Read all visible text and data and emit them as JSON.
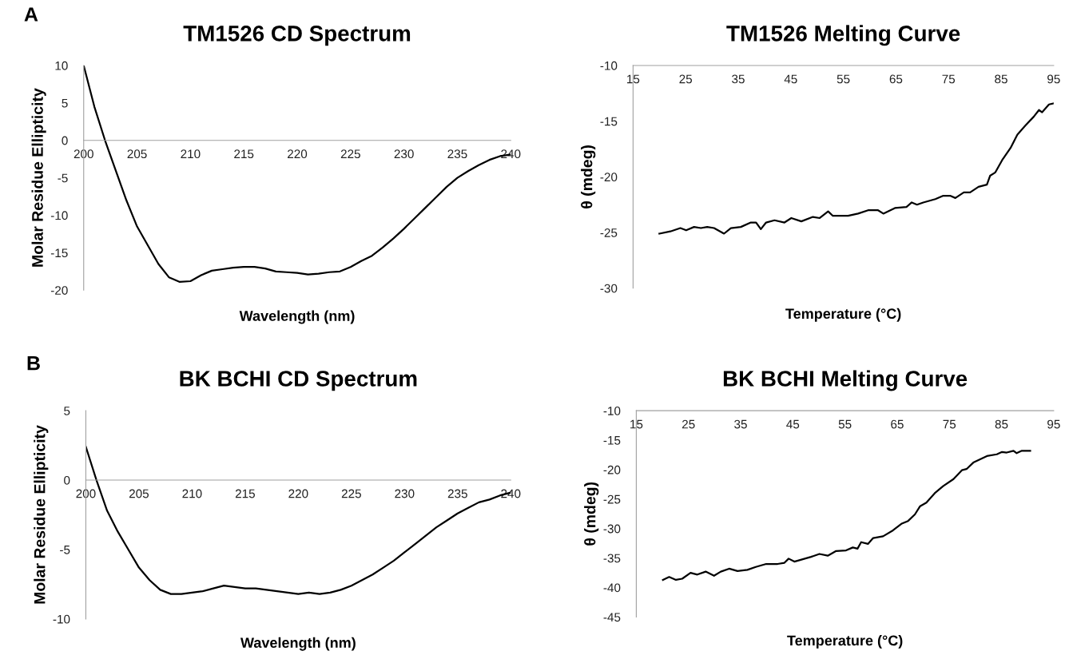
{
  "chart_data": [
    {
      "type": "line",
      "title": "TM1526 CD Spectrum",
      "xlabel": "Wavelength (nm)",
      "ylabel": "Molar Residue Ellipticity",
      "annotations": [
        "A"
      ],
      "xlim": [
        200,
        240
      ],
      "xticks": [
        200,
        205,
        210,
        215,
        220,
        225,
        230,
        235,
        240
      ],
      "ylim": [
        -20,
        10
      ],
      "yticks": [
        -20,
        -15,
        -10,
        -5,
        0,
        5,
        10
      ],
      "grid": false,
      "legend": false,
      "series": [
        {
          "color": "#000000",
          "x": [
            200,
            201,
            202,
            203,
            204,
            205,
            206,
            207,
            208,
            209,
            210,
            211,
            212,
            213,
            214,
            215,
            216,
            217,
            218,
            219,
            220,
            221,
            222,
            223,
            224,
            225,
            226,
            227,
            228,
            229,
            230,
            231,
            232,
            233,
            234,
            235,
            236,
            237,
            238,
            239,
            240
          ],
          "values": [
            10,
            4.5,
            0,
            -4,
            -8,
            -11.5,
            -14,
            -16.5,
            -18.3,
            -18.9,
            -18.8,
            -18,
            -17.4,
            -17.2,
            -17,
            -16.9,
            -16.9,
            -17.1,
            -17.5,
            -17.6,
            -17.7,
            -17.9,
            -17.8,
            -17.6,
            -17.5,
            -16.9,
            -16.1,
            -15.4,
            -14.3,
            -13.1,
            -11.8,
            -10.4,
            -9,
            -7.6,
            -6.2,
            -5,
            -4.1,
            -3.3,
            -2.6,
            -2.1,
            -1.9
          ]
        }
      ]
    },
    {
      "type": "line",
      "title": "TM1526 Melting Curve",
      "xlabel": "Temperature (°C)",
      "ylabel": "θ (mdeg)",
      "xlim": [
        15,
        95
      ],
      "xticks": [
        15,
        25,
        35,
        45,
        55,
        65,
        75,
        85,
        95
      ],
      "ylim": [
        -30,
        -10
      ],
      "yticks": [
        -30,
        -25,
        -20,
        -15,
        -10
      ],
      "grid": false,
      "legend": false,
      "series": [
        {
          "color": "#000000",
          "x": [
            20,
            22.1,
            24,
            25.1,
            26.6,
            27.9,
            29.1,
            30.4,
            32.3,
            33.6,
            35.5,
            37.4,
            38.4,
            39.3,
            40.3,
            41.9,
            43.8,
            45.1,
            47,
            49.2,
            50.5,
            52.1,
            53,
            55.9,
            57.8,
            59.7,
            61.6,
            62.6,
            64.8,
            67,
            68,
            69,
            70.2,
            72.5,
            74,
            75.3,
            76.3,
            77.9,
            79.1,
            80.7,
            82.3,
            82.9,
            83.9,
            85.2,
            86.8,
            88.1,
            89.6,
            91.2,
            92.2,
            92.8,
            94.1,
            95
          ],
          "values": [
            -25.1,
            -24.9,
            -24.6,
            -24.8,
            -24.5,
            -24.6,
            -24.5,
            -24.6,
            -25.1,
            -24.6,
            -24.5,
            -24.1,
            -24.1,
            -24.7,
            -24.1,
            -23.9,
            -24.1,
            -23.7,
            -24,
            -23.6,
            -23.7,
            -23.1,
            -23.5,
            -23.5,
            -23.3,
            -23,
            -23,
            -23.3,
            -22.8,
            -22.7,
            -22.3,
            -22.5,
            -22.3,
            -22,
            -21.7,
            -21.7,
            -21.9,
            -21.4,
            -21.4,
            -20.9,
            -20.7,
            -19.9,
            -19.6,
            -18.5,
            -17.4,
            -16.2,
            -15.4,
            -14.6,
            -14,
            -14.2,
            -13.5,
            -13.4
          ]
        }
      ]
    },
    {
      "type": "line",
      "title": "BK BCHI CD Spectrum",
      "xlabel": "Wavelength (nm)",
      "ylabel": "Molar Residue Ellipticity",
      "annotations": [
        "B"
      ],
      "xlim": [
        200,
        240
      ],
      "xticks": [
        200,
        205,
        210,
        215,
        220,
        225,
        230,
        235,
        240
      ],
      "ylim": [
        -10,
        5
      ],
      "yticks": [
        -10,
        -5,
        0,
        5
      ],
      "grid": false,
      "legend": false,
      "series": [
        {
          "color": "#000000",
          "x": [
            200,
            201,
            202,
            203,
            204,
            205,
            206,
            207,
            208,
            209,
            210,
            211,
            212,
            213,
            214,
            215,
            216,
            217,
            218,
            219,
            220,
            221,
            222,
            223,
            224,
            225,
            226,
            227,
            228,
            229,
            230,
            231,
            232,
            233,
            234,
            235,
            236,
            237,
            238,
            239,
            240
          ],
          "values": [
            2.4,
            0,
            -2.2,
            -3.7,
            -5,
            -6.3,
            -7.2,
            -7.9,
            -8.2,
            -8.2,
            -8.1,
            -8,
            -7.8,
            -7.6,
            -7.7,
            -7.8,
            -7.8,
            -7.9,
            -8,
            -8.1,
            -8.2,
            -8.1,
            -8.2,
            -8.1,
            -7.9,
            -7.6,
            -7.2,
            -6.8,
            -6.3,
            -5.8,
            -5.2,
            -4.6,
            -4,
            -3.4,
            -2.9,
            -2.4,
            -2,
            -1.6,
            -1.4,
            -1.1,
            -0.9
          ]
        }
      ]
    },
    {
      "type": "line",
      "title": "BK BCHI Melting Curve",
      "xlabel": "Temperature (°C)",
      "ylabel": "θ (mdeg)",
      "xlim": [
        15,
        95
      ],
      "xticks": [
        15,
        25,
        35,
        45,
        55,
        65,
        75,
        85,
        95
      ],
      "ylim": [
        -45,
        -10
      ],
      "yticks": [
        -45,
        -40,
        -35,
        -30,
        -25,
        -20,
        -15,
        -10
      ],
      "grid": false,
      "legend": false,
      "series": [
        {
          "color": "#000000",
          "x": [
            20.1,
            21.3,
            22.6,
            23.8,
            25.4,
            26.7,
            28.3,
            29.9,
            31.2,
            32.8,
            34.4,
            36.3,
            37.9,
            39.9,
            42.1,
            43.4,
            44.2,
            45.3,
            46.9,
            48.5,
            50.1,
            51.7,
            53.3,
            55.2,
            56.5,
            57.4,
            58.1,
            59.4,
            60.4,
            62.3,
            64.2,
            65.8,
            67.1,
            68.4,
            69.4,
            70.6,
            72.2,
            73.8,
            75.8,
            77.4,
            78.3,
            79.6,
            82.2,
            84.1,
            85.1,
            86,
            87.3,
            87.9,
            88.9,
            90.5
          ],
          "values": [
            -38.7,
            -38.2,
            -38.7,
            -38.5,
            -37.5,
            -37.8,
            -37.3,
            -38,
            -37.3,
            -36.8,
            -37.2,
            -37,
            -36.5,
            -36,
            -36,
            -35.8,
            -35.1,
            -35.6,
            -35.2,
            -34.8,
            -34.3,
            -34.6,
            -33.8,
            -33.7,
            -33.2,
            -33.4,
            -32.3,
            -32.6,
            -31.6,
            -31.3,
            -30.3,
            -29.2,
            -28.7,
            -27.6,
            -26.2,
            -25.6,
            -24,
            -22.8,
            -21.6,
            -20.1,
            -19.9,
            -18.8,
            -17.7,
            -17.4,
            -17,
            -17.1,
            -16.8,
            -17.2,
            -16.8,
            -16.8
          ]
        }
      ]
    }
  ]
}
